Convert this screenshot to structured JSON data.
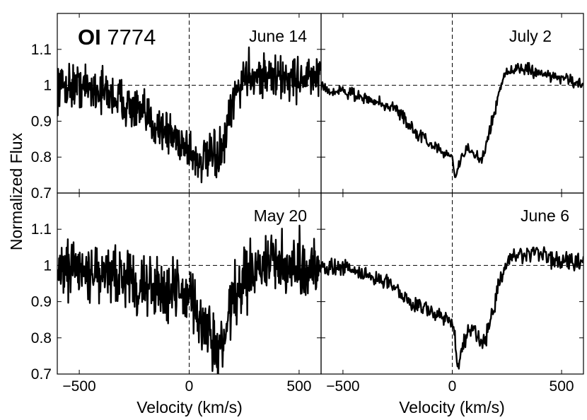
{
  "figure": {
    "line_name_bold": "OI",
    "line_name_rest": " 7774",
    "ylabel": "Normalized Flux",
    "xlabel": "Velocity  (km/s)"
  },
  "chart_data": {
    "type": "line",
    "xlim": [
      -600,
      600
    ],
    "ylim": [
      0.7,
      1.2
    ],
    "xticks": [
      -500,
      0,
      500
    ],
    "yticks": [
      0.7,
      0.8,
      0.9,
      1.0,
      1.1
    ],
    "ytick_labels": [
      "0.7",
      "0.8",
      "0.9",
      "1",
      "1.1"
    ],
    "reference_lines": {
      "x": 0,
      "y": 1.0,
      "style": "dashed"
    },
    "grid": false,
    "panels": [
      {
        "title": "June 14",
        "noise": 0.03,
        "points": [
          [
            -600,
            1.0
          ],
          [
            -500,
            1.0
          ],
          [
            -400,
            0.985
          ],
          [
            -300,
            0.955
          ],
          [
            -200,
            0.91
          ],
          [
            -100,
            0.87
          ],
          [
            -30,
            0.84
          ],
          [
            0,
            0.825
          ],
          [
            30,
            0.79
          ],
          [
            60,
            0.79
          ],
          [
            100,
            0.8
          ],
          [
            130,
            0.8
          ],
          [
            160,
            0.83
          ],
          [
            190,
            0.93
          ],
          [
            220,
            0.99
          ],
          [
            260,
            1.03
          ],
          [
            320,
            1.03
          ],
          [
            400,
            1.02
          ],
          [
            500,
            1.02
          ],
          [
            600,
            1.02
          ]
        ]
      },
      {
        "title": "July 2",
        "noise": 0.008,
        "points": [
          [
            -600,
            1.0
          ],
          [
            -550,
            0.985
          ],
          [
            -450,
            0.975
          ],
          [
            -350,
            0.955
          ],
          [
            -250,
            0.93
          ],
          [
            -180,
            0.88
          ],
          [
            -100,
            0.835
          ],
          [
            -30,
            0.81
          ],
          [
            0,
            0.805
          ],
          [
            15,
            0.73
          ],
          [
            30,
            0.78
          ],
          [
            60,
            0.82
          ],
          [
            100,
            0.81
          ],
          [
            130,
            0.79
          ],
          [
            150,
            0.82
          ],
          [
            170,
            0.87
          ],
          [
            200,
            0.94
          ],
          [
            230,
            1.02
          ],
          [
            260,
            1.04
          ],
          [
            320,
            1.045
          ],
          [
            400,
            1.035
          ],
          [
            500,
            1.02
          ],
          [
            600,
            1.0
          ]
        ]
      },
      {
        "title": "May 20",
        "noise": 0.04,
        "points": [
          [
            -600,
            1.0
          ],
          [
            -500,
            0.98
          ],
          [
            -400,
            0.975
          ],
          [
            -300,
            0.96
          ],
          [
            -200,
            0.955
          ],
          [
            -100,
            0.94
          ],
          [
            0,
            0.92
          ],
          [
            30,
            0.86
          ],
          [
            60,
            0.84
          ],
          [
            100,
            0.79
          ],
          [
            140,
            0.76
          ],
          [
            170,
            0.82
          ],
          [
            200,
            0.9
          ],
          [
            250,
            0.96
          ],
          [
            300,
            0.99
          ],
          [
            400,
            1.0
          ],
          [
            500,
            1.0
          ],
          [
            600,
            1.0
          ]
        ]
      },
      {
        "title": "June 6",
        "noise": 0.012,
        "points": [
          [
            -600,
            1.0
          ],
          [
            -500,
            0.99
          ],
          [
            -400,
            0.975
          ],
          [
            -300,
            0.955
          ],
          [
            -250,
            0.935
          ],
          [
            -200,
            0.9
          ],
          [
            -150,
            0.89
          ],
          [
            -100,
            0.875
          ],
          [
            -30,
            0.855
          ],
          [
            0,
            0.84
          ],
          [
            25,
            0.73
          ],
          [
            50,
            0.79
          ],
          [
            90,
            0.83
          ],
          [
            130,
            0.79
          ],
          [
            150,
            0.79
          ],
          [
            180,
            0.86
          ],
          [
            210,
            0.94
          ],
          [
            250,
            1.01
          ],
          [
            300,
            1.03
          ],
          [
            400,
            1.03
          ],
          [
            500,
            1.01
          ],
          [
            600,
            1.01
          ]
        ]
      }
    ]
  }
}
